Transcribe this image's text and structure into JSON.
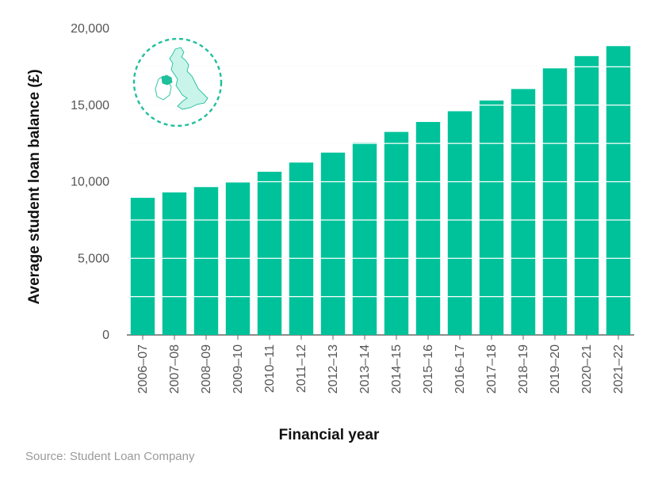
{
  "chart_data": {
    "type": "bar",
    "categories": [
      "2006–07",
      "2007–08",
      "2008–09",
      "2009–10",
      "2010–11",
      "2011–12",
      "2012–13",
      "2013–14",
      "2014–15",
      "2015–16",
      "2016–17",
      "2017–18",
      "2018–19",
      "2019–20",
      "2020–21",
      "2021–22"
    ],
    "values": [
      8950,
      9300,
      9650,
      9950,
      10650,
      11250,
      11900,
      12550,
      13250,
      13900,
      14600,
      15300,
      16050,
      17400,
      18200,
      18850
    ],
    "title": "",
    "xlabel": "Financial year",
    "ylabel": "Average student loan balance (£)",
    "ylim": [
      0,
      20000
    ],
    "yticks": [
      0,
      5000,
      10000,
      15000,
      20000
    ],
    "ytick_labels": [
      "0",
      "5,000",
      "10,000",
      "15,000",
      "20,000"
    ],
    "grid": true,
    "bar_color": "#00c29a",
    "gridline_color": "#ffffff",
    "legend": "none"
  },
  "source_text": "Source: Student Loan Company",
  "decoration": {
    "icon": "uk-map-northern-ireland-highlight-icon",
    "circle_color": "#1fbf9b",
    "map_fill": "#c9f4ea"
  }
}
